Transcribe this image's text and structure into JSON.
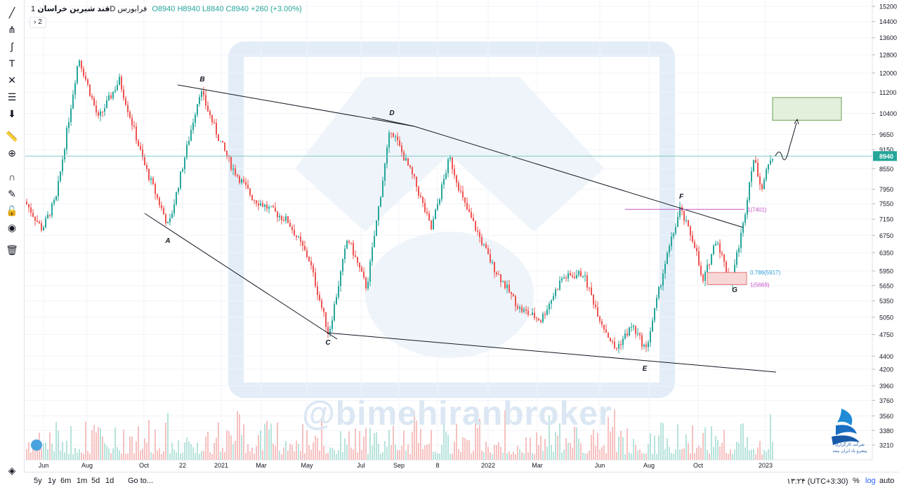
{
  "legend": {
    "symbol": "قند شیرین خراسان",
    "interval": "1D",
    "exchange": "فرابورس",
    "ohlc": "O8940 H8940 L8840 C8940 +260 (+3.00%)",
    "collapse_label": "2"
  },
  "watermark": "@bimehiranbroker",
  "broker_caption_1": "شرکت کارگزاری",
  "broker_caption_2": "پیشرو یاد ایران بیمه",
  "bottom_bar": {
    "timeframes": [
      "5y",
      "1y",
      "6m",
      "1m",
      "5d",
      "1d"
    ],
    "goto": "Go to...",
    "clock": "۱۳:۲۴ (UTC+3:30)",
    "percent": "%",
    "log": "log",
    "auto": "auto"
  },
  "colors": {
    "up": "#26a69a",
    "down": "#ef5350",
    "price_line": "#26a69a",
    "fib": "#c652c6",
    "fib_786": "#2f9fd7"
  },
  "tools": [
    "trend-line-icon",
    "pitchfork-icon",
    "brush-icon",
    "text-icon",
    "pattern-icon",
    "forecast-icon",
    "arrow-down-icon",
    "ruler-icon",
    "zoom-icon",
    "magnet-icon",
    "pencil-lock-icon",
    "lock-icon",
    "eye-icon",
    "trash-icon",
    "layers-icon"
  ],
  "chart_data": {
    "type": "candlestick",
    "y_axis": {
      "ticks": [
        3210,
        3380,
        3560,
        3760,
        3960,
        4200,
        4400,
        4750,
        5050,
        5350,
        5650,
        5950,
        6350,
        6750,
        7150,
        7550,
        7950,
        8550,
        9150,
        9650,
        10400,
        11200,
        12000,
        12800,
        13600,
        14400,
        15200
      ],
      "scale": "log"
    },
    "x_axis": {
      "ticks": [
        "Jun",
        "Aug",
        "Oct",
        "22",
        "2021",
        "Mar",
        "May",
        "Jul",
        "Sep",
        "8",
        "2022",
        "Mar",
        "Jun",
        "Aug",
        "Oct",
        "2023"
      ]
    },
    "last_price": 8940,
    "pattern_points": [
      {
        "label": "A",
        "price": 6950
      },
      {
        "label": "B",
        "price": 11300
      },
      {
        "label": "C",
        "price": 4750
      },
      {
        "label": "D",
        "price": 9900
      },
      {
        "label": "E",
        "price": 4400
      },
      {
        "label": "F",
        "price": 7401
      },
      {
        "label": "G",
        "price": 5669
      }
    ],
    "fib_levels": [
      {
        "label": "1(7401)",
        "price": 7401
      },
      {
        "label": "0.786(5917)",
        "price": 5917
      },
      {
        "label": "1(5669)",
        "price": 5669
      }
    ],
    "target_zone": {
      "low": 10150,
      "high": 11000
    },
    "support_zone": {
      "low": 5669,
      "high": 5917
    }
  }
}
